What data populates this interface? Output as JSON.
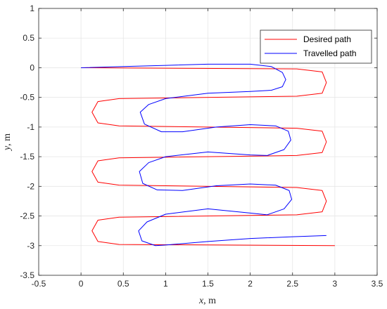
{
  "chart_data": {
    "type": "line",
    "title": "",
    "xlabel_var": "x",
    "xlabel_unit": ", m",
    "ylabel_var": "y",
    "ylabel_unit": ", m",
    "xlim": [
      -0.5,
      3.5
    ],
    "ylim": [
      -3.5,
      1
    ],
    "xticks": [
      -0.5,
      0,
      0.5,
      1,
      1.5,
      2,
      2.5,
      3,
      3.5
    ],
    "yticks": [
      1,
      0.5,
      0,
      -0.5,
      -1,
      -1.5,
      -2,
      -2.5,
      -3,
      -3.5
    ],
    "xtick_labels": [
      "-0.5",
      "0",
      "0.5",
      "1",
      "1.5",
      "2",
      "2.5",
      "3",
      "3.5"
    ],
    "ytick_labels": [
      "1",
      "0.5",
      "0",
      "-0.5",
      "-1",
      "-1.5",
      "-2",
      "-2.5",
      "-3",
      "-3.5"
    ],
    "grid": true,
    "legend_position": "top-right",
    "series": [
      {
        "name": "Desired path",
        "color": "#ff0000",
        "x": [
          0.0,
          2.55,
          2.85,
          2.9,
          2.85,
          2.55,
          0.45,
          0.2,
          0.13,
          0.2,
          0.45,
          2.55,
          2.85,
          2.9,
          2.85,
          2.55,
          0.45,
          0.2,
          0.13,
          0.2,
          0.45,
          2.55,
          2.85,
          2.9,
          2.85,
          2.55,
          0.45,
          0.2,
          0.13,
          0.2,
          0.45,
          3.0
        ],
        "y": [
          0.0,
          -0.02,
          -0.07,
          -0.25,
          -0.43,
          -0.48,
          -0.52,
          -0.57,
          -0.75,
          -0.93,
          -0.98,
          -1.02,
          -1.07,
          -1.25,
          -1.43,
          -1.48,
          -1.52,
          -1.57,
          -1.75,
          -1.93,
          -1.98,
          -2.02,
          -2.07,
          -2.25,
          -2.43,
          -2.48,
          -2.52,
          -2.57,
          -2.75,
          -2.93,
          -2.98,
          -3.0
        ]
      },
      {
        "name": "Travelled path",
        "color": "#0000ff",
        "x": [
          0.0,
          0.5,
          1.0,
          1.5,
          2.0,
          2.25,
          2.38,
          2.42,
          2.38,
          2.25,
          2.0,
          1.5,
          1.0,
          0.8,
          0.7,
          0.75,
          0.95,
          1.2,
          1.6,
          2.0,
          2.3,
          2.45,
          2.48,
          2.4,
          2.2,
          2.0,
          1.5,
          1.0,
          0.8,
          0.69,
          0.73,
          0.9,
          1.2,
          1.6,
          2.0,
          2.3,
          2.46,
          2.49,
          2.4,
          2.2,
          2.0,
          1.5,
          1.0,
          0.78,
          0.68,
          0.72,
          0.88,
          1.0,
          1.5,
          2.0,
          2.5,
          2.9
        ],
        "y": [
          0.0,
          0.02,
          0.04,
          0.06,
          0.06,
          0.02,
          -0.08,
          -0.2,
          -0.32,
          -0.38,
          -0.4,
          -0.43,
          -0.52,
          -0.62,
          -0.75,
          -0.95,
          -1.08,
          -1.08,
          -1.0,
          -0.96,
          -0.98,
          -1.07,
          -1.22,
          -1.38,
          -1.48,
          -1.47,
          -1.42,
          -1.5,
          -1.6,
          -1.75,
          -1.95,
          -2.06,
          -2.07,
          -1.99,
          -1.96,
          -1.98,
          -2.07,
          -2.22,
          -2.38,
          -2.48,
          -2.45,
          -2.38,
          -2.47,
          -2.6,
          -2.75,
          -2.92,
          -3.0,
          -2.99,
          -2.93,
          -2.88,
          -2.85,
          -2.83
        ]
      }
    ]
  }
}
